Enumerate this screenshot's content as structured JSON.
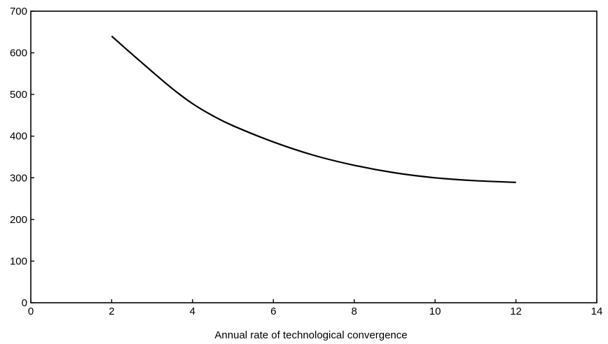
{
  "chart_data": {
    "type": "line",
    "title": "",
    "xlabel": "Annual rate of technological convergence",
    "ylabel": "",
    "xlim": [
      0,
      14
    ],
    "ylim": [
      0,
      700
    ],
    "xticks": [
      0,
      2,
      4,
      6,
      8,
      10,
      12,
      14
    ],
    "yticks": [
      0,
      100,
      200,
      300,
      400,
      500,
      600,
      700
    ],
    "grid": false,
    "legend": "none",
    "line_color": "#000000",
    "series": [
      {
        "x": [
          2,
          2.5,
          3,
          3.5,
          4,
          4.5,
          5,
          6,
          7,
          8,
          9,
          10,
          11,
          12
        ],
        "y": [
          640,
          597,
          555,
          514,
          478,
          449,
          425,
          386,
          354,
          330,
          312,
          300,
          293,
          289
        ]
      }
    ]
  }
}
